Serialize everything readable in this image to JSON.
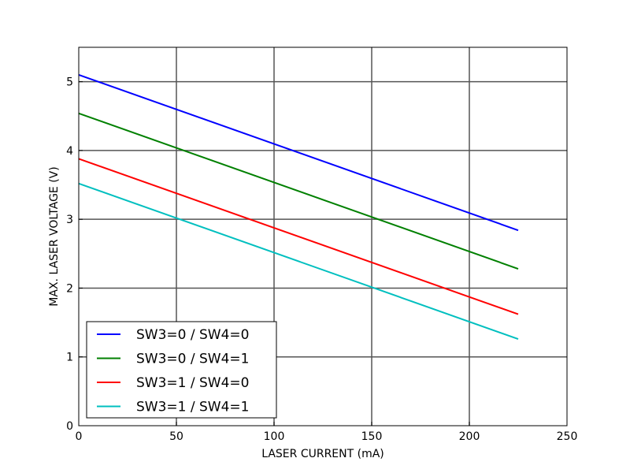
{
  "chart_data": {
    "type": "line",
    "title": "",
    "xlabel": "LASER CURRENT (mA)",
    "ylabel": "MAX. LASER VOLTAGE (V)",
    "xlim": [
      0,
      250
    ],
    "ylim": [
      0,
      5.5
    ],
    "xticks": [
      0,
      50,
      100,
      150,
      200,
      250
    ],
    "yticks": [
      0,
      1,
      2,
      3,
      4,
      5
    ],
    "grid": true,
    "legend_position": "lower-left",
    "series": [
      {
        "name": "SW3=0 / SW4=0",
        "color": "#0000ff",
        "x": [
          0,
          225
        ],
        "y": [
          5.1,
          2.84
        ]
      },
      {
        "name": "SW3=0 / SW4=1",
        "color": "#008000",
        "x": [
          0,
          225
        ],
        "y": [
          4.54,
          2.28
        ]
      },
      {
        "name": "SW3=1 / SW4=0",
        "color": "#ff0000",
        "x": [
          0,
          225
        ],
        "y": [
          3.88,
          1.62
        ]
      },
      {
        "name": "SW3=1 / SW4=1",
        "color": "#00bfbf",
        "x": [
          0,
          225
        ],
        "y": [
          3.52,
          1.26
        ]
      }
    ]
  }
}
